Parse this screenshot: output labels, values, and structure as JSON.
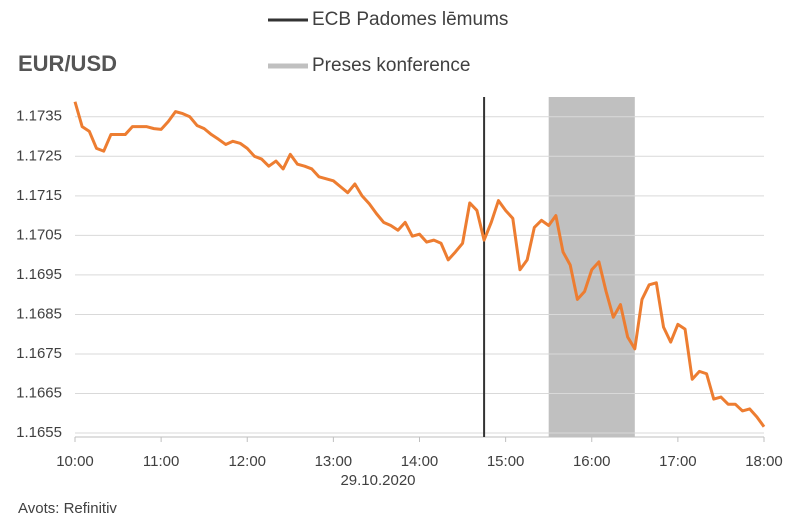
{
  "chart_data": {
    "type": "line",
    "title": "EUR/USD",
    "x_label": "29.10.2020",
    "source": "Avots: Refinitiv",
    "x": [
      600,
      605,
      610,
      615,
      620,
      625,
      630,
      635,
      640,
      645,
      650,
      655,
      660,
      665,
      670,
      675,
      680,
      685,
      690,
      695,
      700,
      705,
      710,
      715,
      720,
      725,
      730,
      735,
      740,
      745,
      750,
      755,
      760,
      765,
      770,
      775,
      780,
      785,
      790,
      795,
      800,
      805,
      810,
      815,
      820,
      825,
      830,
      835,
      840,
      845,
      850,
      855,
      860,
      865,
      870,
      875,
      880,
      885,
      890,
      895,
      900,
      905,
      910,
      915,
      920,
      925,
      930,
      935,
      940,
      945,
      950,
      955,
      960,
      965,
      970,
      975,
      980,
      985,
      990,
      995,
      1000,
      1005,
      1010,
      1015,
      1020,
      1025,
      1030,
      1035,
      1040,
      1045,
      1050,
      1055,
      1060,
      1065,
      1070,
      1075,
      1080
    ],
    "series": [
      {
        "name": "EUR/USD",
        "color": "#ed7d31",
        "values": [
          1.17388,
          1.17325,
          1.17313,
          1.1727,
          1.17263,
          1.17305,
          1.17305,
          1.17305,
          1.17325,
          1.17325,
          1.17325,
          1.1732,
          1.17318,
          1.17338,
          1.17363,
          1.17358,
          1.1735,
          1.17328,
          1.1732,
          1.17305,
          1.17293,
          1.1728,
          1.17288,
          1.17283,
          1.1727,
          1.1725,
          1.17243,
          1.17225,
          1.17238,
          1.17218,
          1.17255,
          1.1723,
          1.17225,
          1.17218,
          1.17198,
          1.17193,
          1.17188,
          1.17173,
          1.17158,
          1.1718,
          1.1715,
          1.1713,
          1.17105,
          1.17083,
          1.17075,
          1.17063,
          1.17083,
          1.17048,
          1.17053,
          1.17033,
          1.17038,
          1.1703,
          1.16988,
          1.17008,
          1.1703,
          1.17132,
          1.17113,
          1.17038,
          1.17083,
          1.17138,
          1.17113,
          1.17093,
          1.16963,
          1.16988,
          1.1707,
          1.17088,
          1.17075,
          1.171,
          1.17008,
          1.16975,
          1.16888,
          1.16908,
          1.16963,
          1.16983,
          1.16908,
          1.16843,
          1.16875,
          1.16793,
          1.16763,
          1.16888,
          1.16925,
          1.1693,
          1.16818,
          1.1678,
          1.16825,
          1.16813,
          1.16686,
          1.16706,
          1.167,
          1.16636,
          1.16641,
          1.16623,
          1.16623,
          1.16606,
          1.16611,
          1.16591,
          1.16566
        ]
      }
    ],
    "events": [
      {
        "name": "ECB Padomes lēmums",
        "x": 885,
        "color": "#333333"
      }
    ],
    "bands": [
      {
        "name": "Preses konference",
        "x": [
          930,
          990
        ],
        "color": "#c0c0c0"
      }
    ],
    "xlim": [
      600,
      1080
    ],
    "xticks": [
      {
        "value": 600,
        "label": "10:00"
      },
      {
        "value": 660,
        "label": "11:00"
      },
      {
        "value": 720,
        "label": "12:00"
      },
      {
        "value": 780,
        "label": "13:00"
      },
      {
        "value": 840,
        "label": "14:00"
      },
      {
        "value": 900,
        "label": "15:00"
      },
      {
        "value": 960,
        "label": "16:00"
      },
      {
        "value": 1020,
        "label": "17:00"
      },
      {
        "value": 1080,
        "label": "18:00"
      }
    ],
    "ylim": [
      1.1654,
      1.174
    ],
    "yticks": [
      1.1655,
      1.1665,
      1.1675,
      1.1685,
      1.1695,
      1.1705,
      1.1715,
      1.1725,
      1.1735
    ],
    "grid": true
  }
}
